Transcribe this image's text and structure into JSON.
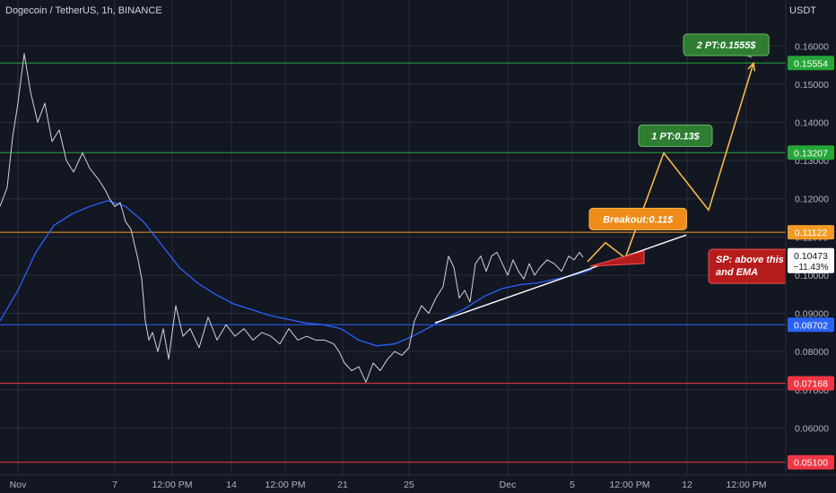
{
  "header": {
    "title": "Dogecoin / TetherUS, 1h, BINANCE",
    "currency": "USDT"
  },
  "chart_data": {
    "type": "line",
    "symbol": "DOGEUSDT",
    "interval": "1h",
    "ylim": [
      0.05,
      0.165
    ],
    "y_ticks": [
      "0.06000",
      "0.07000",
      "0.08000",
      "0.09000",
      "0.10000",
      "0.11000",
      "0.12000",
      "0.13000",
      "0.14000",
      "0.15000",
      "0.16000"
    ],
    "x_ticks": [
      "Nov",
      "7",
      "12:00 PM",
      "14",
      "12:00 PM",
      "21",
      "25",
      "Dec",
      "5",
      "12:00 PM",
      "12",
      "12:00 PM"
    ],
    "grid": true,
    "price_line": {
      "name": "Dogecoin / TetherUS",
      "color": "#d1d4dc",
      "t": [
        0,
        8,
        14,
        20,
        27,
        34,
        42,
        50,
        58,
        66,
        74,
        82,
        92,
        100,
        110,
        118,
        122,
        128,
        134,
        140,
        146,
        150,
        154,
        158,
        162,
        166,
        170,
        176,
        182,
        188,
        196,
        204,
        212,
        222,
        232,
        242,
        252,
        262,
        272,
        282,
        292,
        302,
        312,
        322,
        332,
        342,
        352,
        362,
        372,
        378,
        384,
        392,
        400,
        408,
        416,
        424,
        432,
        440,
        448,
        456,
        462,
        470,
        478,
        486,
        494,
        500,
        506,
        512,
        518,
        524,
        530,
        536,
        542,
        548,
        554,
        560,
        566,
        572,
        578,
        584,
        590,
        596,
        602,
        610,
        618,
        626,
        634,
        640,
        646,
        650
      ],
      "price": [
        0.118,
        0.123,
        0.136,
        0.145,
        0.158,
        0.148,
        0.14,
        0.145,
        0.135,
        0.138,
        0.13,
        0.127,
        0.132,
        0.128,
        0.125,
        0.122,
        0.12,
        0.118,
        0.119,
        0.114,
        0.112,
        0.108,
        0.104,
        0.099,
        0.088,
        0.083,
        0.085,
        0.08,
        0.086,
        0.078,
        0.092,
        0.084,
        0.086,
        0.081,
        0.089,
        0.083,
        0.087,
        0.084,
        0.086,
        0.083,
        0.085,
        0.084,
        0.082,
        0.086,
        0.083,
        0.084,
        0.083,
        0.083,
        0.082,
        0.08,
        0.077,
        0.075,
        0.076,
        0.072,
        0.077,
        0.075,
        0.078,
        0.08,
        0.079,
        0.081,
        0.088,
        0.092,
        0.09,
        0.094,
        0.097,
        0.105,
        0.102,
        0.094,
        0.096,
        0.093,
        0.103,
        0.105,
        0.101,
        0.105,
        0.106,
        0.103,
        0.1,
        0.104,
        0.101,
        0.099,
        0.103,
        0.1,
        0.102,
        0.104,
        0.103,
        0.101,
        0.105,
        0.104,
        0.106,
        0.1047
      ]
    },
    "series": [
      {
        "name": "EMA",
        "color": "#2962ff",
        "t": [
          0,
          20,
          40,
          60,
          80,
          100,
          120,
          140,
          160,
          180,
          200,
          220,
          240,
          260,
          280,
          300,
          320,
          340,
          360,
          380,
          400,
          420,
          440,
          460,
          480,
          500,
          520,
          540,
          560,
          580,
          600,
          620,
          640,
          660
        ],
        "price": [
          0.088,
          0.096,
          0.106,
          0.113,
          0.116,
          0.118,
          0.1195,
          0.118,
          0.114,
          0.108,
          0.102,
          0.098,
          0.095,
          0.0925,
          0.091,
          0.0895,
          0.0885,
          0.0875,
          0.087,
          0.086,
          0.083,
          0.0815,
          0.082,
          0.084,
          0.0865,
          0.089,
          0.0915,
          0.0945,
          0.0965,
          0.0975,
          0.098,
          0.099,
          0.1,
          0.1015
        ]
      }
    ],
    "horizontal_levels": [
      {
        "price": 0.15554,
        "label": "0.15554",
        "color": "#26a639"
      },
      {
        "price": 0.13207,
        "label": "0.13207",
        "color": "#26a639"
      },
      {
        "price": 0.11122,
        "label": "0.11122",
        "color": "#f59b23"
      },
      {
        "price": 0.08702,
        "label": "0.08702",
        "color": "#2962ff"
      },
      {
        "price": 0.07168,
        "label": "0.07168",
        "color": "#f23645"
      },
      {
        "price": 0.051,
        "label": "0.05100",
        "color": "#f23645"
      }
    ],
    "last_price": {
      "price": 0.10473,
      "label": "0.10473",
      "change": "−11.43%"
    },
    "trendline": {
      "t": [
        485,
        765
      ],
      "price": [
        0.0875,
        0.1105
      ]
    },
    "projection": {
      "color": "#f5b84a",
      "t": [
        655,
        675,
        697,
        740,
        790,
        840
      ],
      "price": [
        0.1035,
        0.1085,
        0.1045,
        0.132,
        0.117,
        0.1555
      ]
    },
    "annotations": [
      {
        "text": "2 PT:0.1555$",
        "t": 762,
        "price": 0.1603,
        "kind": "green"
      },
      {
        "text": "1 PT:0.13$",
        "t": 712,
        "price": 0.1365,
        "kind": "green"
      },
      {
        "text": "Breakout:0.11$",
        "t": 657,
        "price": 0.1147,
        "kind": "orange"
      },
      {
        "text": "SP: above this sending line",
        "text2": "and EMA",
        "t": 790,
        "price": 0.1023,
        "kind": "red"
      }
    ]
  }
}
